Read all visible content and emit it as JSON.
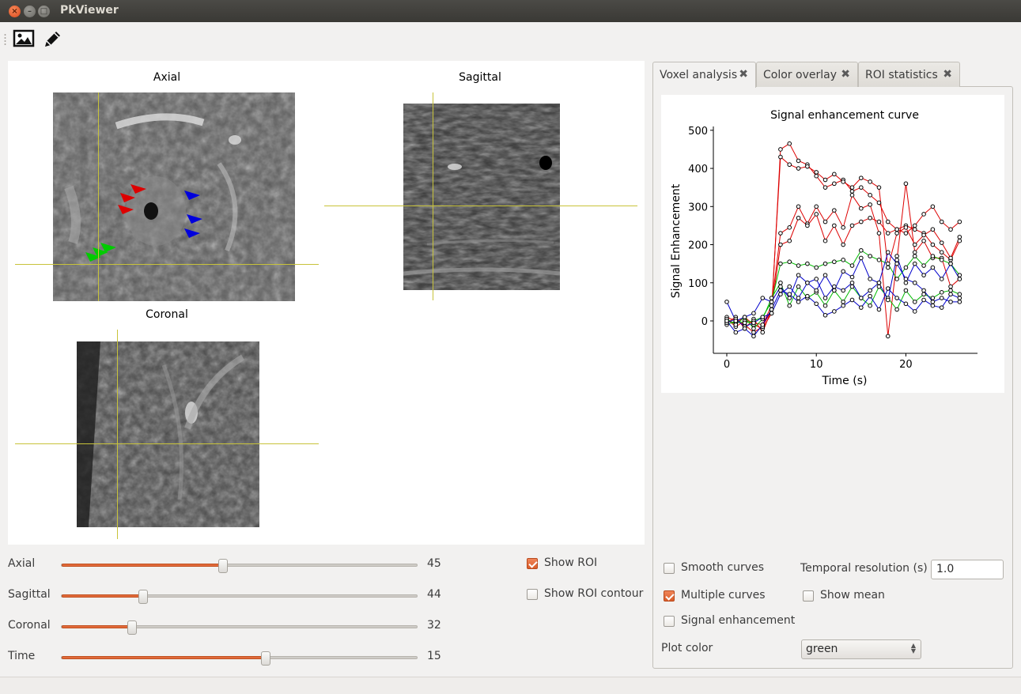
{
  "window": {
    "title": "PkViewer"
  },
  "toolbar": {
    "tools": [
      {
        "icon": "image-icon"
      },
      {
        "icon": "pencil-icon"
      }
    ]
  },
  "views": {
    "axial_title": "Axial",
    "sagittal_title": "Sagittal",
    "coronal_title": "Coronal"
  },
  "sliders": [
    {
      "label": "Axial",
      "value": "45",
      "fraction": 0.455
    },
    {
      "label": "Sagittal",
      "value": "44",
      "fraction": 0.23
    },
    {
      "label": "Coronal",
      "value": "32",
      "fraction": 0.198
    },
    {
      "label": "Time",
      "value": "15",
      "fraction": 0.575
    }
  ],
  "roi_options": {
    "show_roi": {
      "label": "Show ROI",
      "checked": true
    },
    "show_roi_contour": {
      "label": "Show ROI contour",
      "checked": false
    }
  },
  "tabs": [
    {
      "label": "Voxel analysis",
      "active": true
    },
    {
      "label": "Color overlay",
      "active": false
    },
    {
      "label": "ROI statistics",
      "active": false
    }
  ],
  "options": {
    "smooth_curves": {
      "label": "Smooth curves",
      "checked": false
    },
    "temporal_resolution_label": "Temporal resolution (s)",
    "temporal_resolution_value": "1.0",
    "multiple_curves": {
      "label": "Multiple curves",
      "checked": true
    },
    "show_mean": {
      "label": "Show mean",
      "checked": false
    },
    "signal_enhancement": {
      "label": "Signal enhancement",
      "checked": false
    },
    "plot_color_label": "Plot color",
    "plot_color_value": "green"
  },
  "colors": {
    "accent": "#e26a3b",
    "crosshair": "#c8c33a",
    "roi_red": "#dd0000",
    "roi_green": "#00cc00",
    "roi_blue": "#0000dd"
  },
  "chart_data": {
    "type": "line",
    "title": "Signal enhancement curve",
    "xlabel": "Time (s)",
    "ylabel": "Signal Enhancement",
    "xlim": [
      -1.5,
      28
    ],
    "ylim": [
      -85,
      510
    ],
    "xticks": [
      0,
      10,
      20
    ],
    "yticks": [
      0,
      100,
      200,
      300,
      400,
      500
    ],
    "x": [
      0,
      1,
      2,
      3,
      4,
      5,
      6,
      7,
      8,
      9,
      10,
      11,
      12,
      13,
      14,
      15,
      16,
      17,
      18,
      19,
      20,
      21,
      22,
      23,
      24,
      25,
      26
    ],
    "series": [
      {
        "color": "#dd0000",
        "values": [
          0,
          -5,
          10,
          -10,
          -20,
          20,
          450,
          465,
          420,
          410,
          380,
          350,
          360,
          370,
          340,
          350,
          330,
          310,
          260,
          240,
          250,
          240,
          230,
          200,
          180,
          160,
          210
        ]
      },
      {
        "color": "#dd0000",
        "values": [
          -5,
          10,
          -20,
          5,
          -30,
          30,
          430,
          410,
          400,
          405,
          390,
          370,
          385,
          365,
          350,
          375,
          365,
          350,
          140,
          230,
          245,
          200,
          225,
          240,
          205,
          165,
          220
        ]
      },
      {
        "color": "#dd0000",
        "values": [
          5,
          -15,
          0,
          -5,
          -10,
          40,
          230,
          245,
          300,
          255,
          300,
          260,
          290,
          245,
          330,
          295,
          305,
          230,
          -40,
          160,
          360,
          180,
          210,
          165,
          165,
          90,
          110
        ]
      },
      {
        "color": "#dd0000",
        "values": [
          10,
          0,
          -10,
          -30,
          -15,
          30,
          200,
          210,
          270,
          250,
          280,
          210,
          250,
          200,
          250,
          260,
          270,
          260,
          230,
          240,
          230,
          250,
          280,
          300,
          260,
          240,
          260
        ]
      },
      {
        "color": "#00bb00",
        "values": [
          -10,
          0,
          -5,
          0,
          10,
          50,
          150,
          155,
          145,
          150,
          140,
          150,
          155,
          160,
          145,
          185,
          170,
          160,
          150,
          110,
          140,
          170,
          145,
          170,
          160,
          150,
          120
        ]
      },
      {
        "color": "#00bb00",
        "values": [
          5,
          -10,
          10,
          -20,
          5,
          60,
          100,
          40,
          90,
          60,
          75,
          40,
          80,
          50,
          90,
          60,
          40,
          90,
          60,
          30,
          80,
          50,
          70,
          60,
          75,
          80,
          70
        ]
      },
      {
        "color": "#0000cc",
        "values": [
          -5,
          5,
          -15,
          -5,
          10,
          20,
          70,
          90,
          60,
          100,
          80,
          120,
          80,
          130,
          115,
          165,
          110,
          100,
          55,
          170,
          100,
          150,
          120,
          140,
          110,
          150,
          110
        ]
      },
      {
        "color": "#0000cc",
        "values": [
          50,
          0,
          10,
          20,
          60,
          50,
          90,
          60,
          120,
          100,
          110,
          60,
          90,
          80,
          100,
          60,
          80,
          100,
          180,
          150,
          110,
          100,
          80,
          50,
          60,
          50,
          50
        ]
      },
      {
        "color": "#0000cc",
        "values": [
          0,
          -30,
          -20,
          -40,
          -10,
          30,
          80,
          70,
          50,
          65,
          45,
          15,
          25,
          40,
          55,
          35,
          65,
          30,
          85,
          60,
          45,
          25,
          55,
          40,
          35,
          70,
          60
        ]
      }
    ]
  }
}
